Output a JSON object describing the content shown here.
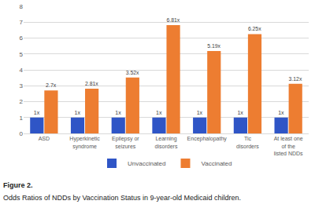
{
  "chart_data": {
    "type": "bar",
    "title": "Figure 2.",
    "subtitle": "Odds Ratios of NDDs by Vaccination Status in 9-year-old Medicaid children.",
    "categories": [
      "ASD",
      "Hyperkinetic syndrome",
      "Epilepsy or seizures",
      "Learning disorders",
      "Encephalopathy",
      "Tic disorders",
      "At least one of the listed NDDs"
    ],
    "series": [
      {
        "name": "Unvaccinated",
        "color": "#2f55c6",
        "values": [
          1,
          1,
          1,
          1,
          1,
          1,
          1
        ],
        "value_labels": [
          "1x",
          "1x",
          "1x",
          "1x",
          "1x",
          "1x",
          "1x"
        ]
      },
      {
        "name": "Vaccinated",
        "color": "#ed7d31",
        "values": [
          2.7,
          2.81,
          3.52,
          6.81,
          5.19,
          6.25,
          3.12
        ],
        "value_labels": [
          "2.7x",
          "2.81x",
          "3.52x",
          "6.81x",
          "5.19x",
          "6.25x",
          "3.12x"
        ]
      }
    ],
    "ylim": [
      0,
      8
    ],
    "yticks": [
      0,
      1,
      2,
      3,
      4,
      5,
      6,
      7,
      8
    ],
    "grid": true,
    "legend": "bottom",
    "data_labels": true
  }
}
